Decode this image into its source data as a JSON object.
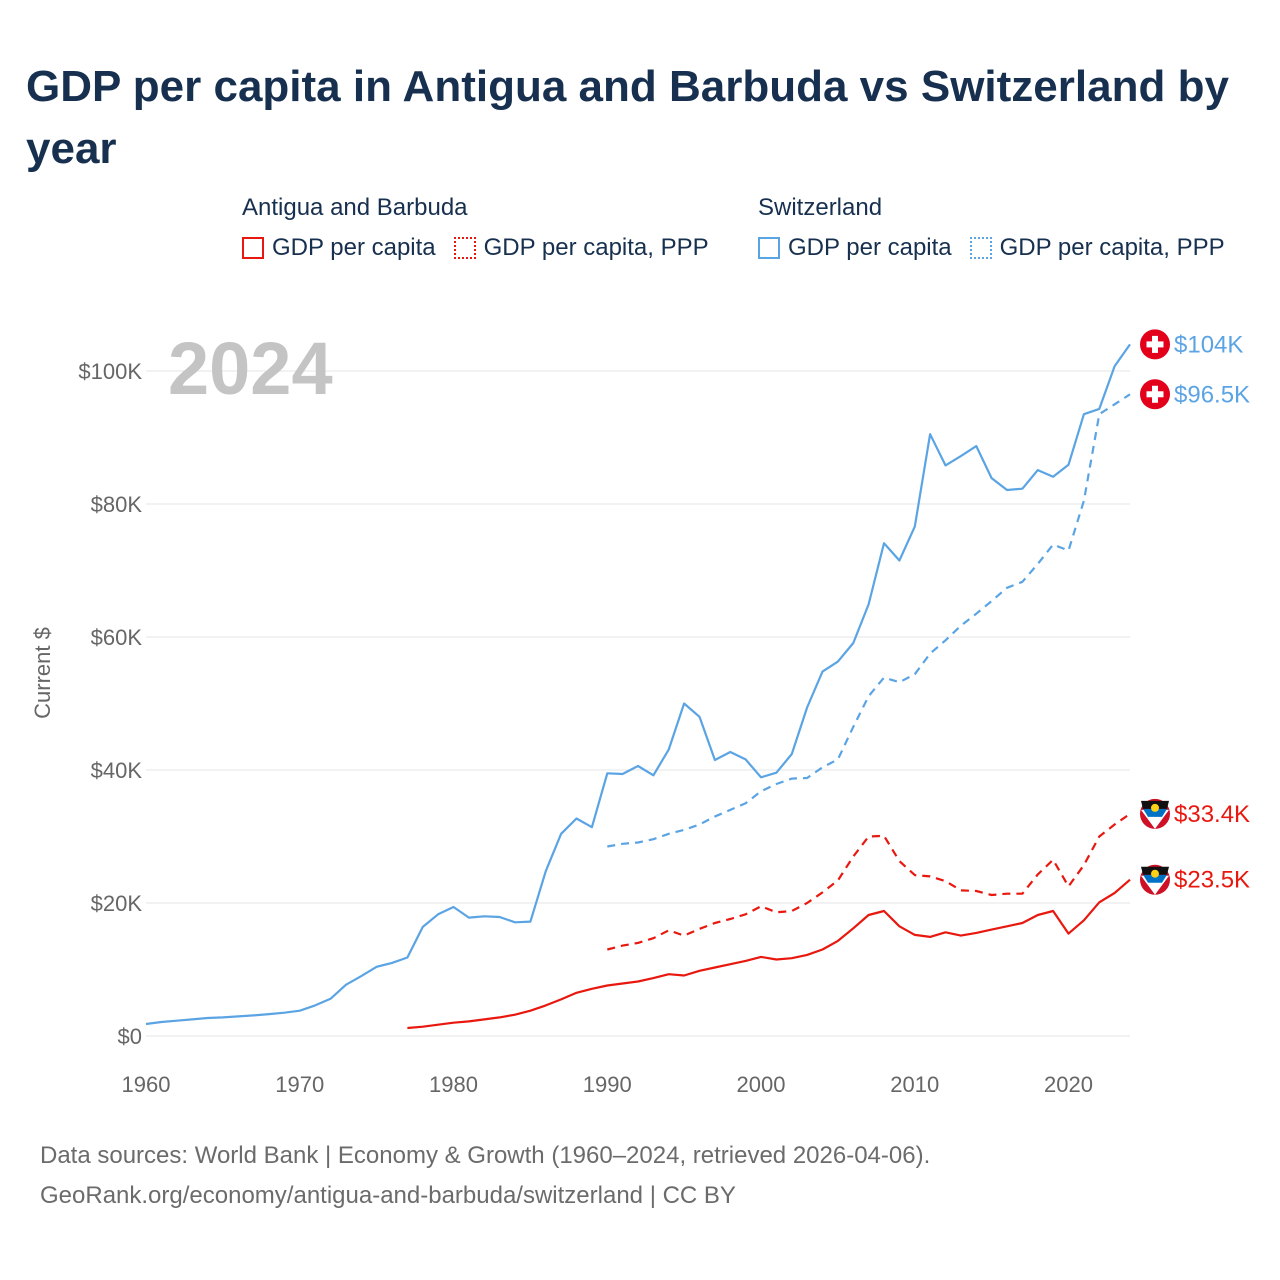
{
  "title": "GDP per capita in Antigua and Barbuda vs Switzerland by year",
  "legend": {
    "groups": [
      {
        "name": "Antigua and Barbuda",
        "items": [
          "GDP per capita",
          "GDP per capita, PPP"
        ]
      },
      {
        "name": "Switzerland",
        "items": [
          "GDP per capita",
          "GDP per capita, PPP"
        ]
      }
    ]
  },
  "year_label": "2024",
  "footer": {
    "line1": "Data sources: World Bank | Economy & Growth (1960–2024, retrieved 2026-04-06).",
    "line2": "GeoRank.org/economy/antigua-and-barbuda/switzerland | CC BY"
  },
  "colors": {
    "antigua": "#e8180f",
    "switzerland": "#5ba4e4",
    "grid": "#e6e6e6",
    "axis_text": "#666666"
  },
  "chart_data": {
    "type": "line",
    "title": "GDP per capita in Antigua and Barbuda vs Switzerland by year",
    "xlabel": "",
    "ylabel": "Current $",
    "xlim": [
      1960,
      2024
    ],
    "ylim": [
      0,
      104000
    ],
    "x_ticks": [
      1960,
      1970,
      1980,
      1990,
      2000,
      2010,
      2020
    ],
    "y_ticks": [
      {
        "value": 0,
        "label": "$0"
      },
      {
        "value": 20000,
        "label": "$20K"
      },
      {
        "value": 40000,
        "label": "$40K"
      },
      {
        "value": 60000,
        "label": "$60K"
      },
      {
        "value": 80000,
        "label": "$80K"
      },
      {
        "value": 100000,
        "label": "$100K"
      }
    ],
    "grid": true,
    "series": [
      {
        "name": "Switzerland GDP per capita",
        "country": "switzerland",
        "dash": false,
        "end_label": "$104K",
        "x": [
          1960,
          1961,
          1962,
          1963,
          1964,
          1965,
          1966,
          1967,
          1968,
          1969,
          1970,
          1971,
          1972,
          1973,
          1974,
          1975,
          1976,
          1977,
          1978,
          1979,
          1980,
          1981,
          1982,
          1983,
          1984,
          1985,
          1986,
          1987,
          1988,
          1989,
          1990,
          1991,
          1992,
          1993,
          1994,
          1995,
          1996,
          1997,
          1998,
          1999,
          2000,
          2001,
          2002,
          2003,
          2004,
          2005,
          2006,
          2007,
          2008,
          2009,
          2010,
          2011,
          2012,
          2013,
          2014,
          2015,
          2016,
          2017,
          2018,
          2019,
          2020,
          2021,
          2022,
          2023,
          2024
        ],
        "values": [
          1800,
          2100,
          2300,
          2500,
          2700,
          2800,
          2950,
          3100,
          3300,
          3500,
          3800,
          4600,
          5600,
          7700,
          9000,
          10400,
          11000,
          11800,
          16400,
          18300,
          19400,
          17800,
          18000,
          17900,
          17100,
          17200,
          24800,
          30400,
          32700,
          31400,
          39500,
          39400,
          40600,
          39200,
          43100,
          50000,
          48000,
          41500,
          42700,
          41600,
          38900,
          39600,
          42400,
          49400,
          54800,
          56300,
          59100,
          64900,
          74100,
          71500,
          76600,
          90500,
          85800,
          87200,
          88700,
          83900,
          82100,
          82300,
          85100,
          84100,
          85900,
          93500,
          94300,
          100700,
          104000
        ]
      },
      {
        "name": "Switzerland GDP per capita, PPP",
        "country": "switzerland",
        "dash": true,
        "end_label": "$96.5K",
        "x": [
          1990,
          1991,
          1992,
          1993,
          1994,
          1995,
          1996,
          1997,
          1998,
          1999,
          2000,
          2001,
          2002,
          2003,
          2004,
          2005,
          2006,
          2007,
          2008,
          2009,
          2010,
          2011,
          2012,
          2013,
          2014,
          2015,
          2016,
          2017,
          2018,
          2019,
          2020,
          2021,
          2022,
          2023,
          2024
        ],
        "values": [
          28500,
          28900,
          29100,
          29600,
          30400,
          31000,
          31800,
          33000,
          34000,
          35000,
          36800,
          37900,
          38700,
          38800,
          40400,
          41600,
          46500,
          51100,
          53900,
          53200,
          54400,
          57500,
          59500,
          61700,
          63500,
          65400,
          67400,
          68300,
          71000,
          73900,
          73000,
          80500,
          93500,
          95000,
          96500
        ]
      },
      {
        "name": "Antigua and Barbuda GDP per capita",
        "country": "antigua",
        "dash": false,
        "end_label": "$23.5K",
        "x": [
          1977,
          1978,
          1979,
          1980,
          1981,
          1982,
          1983,
          1984,
          1985,
          1986,
          1987,
          1988,
          1989,
          1990,
          1991,
          1992,
          1993,
          1994,
          1995,
          1996,
          1997,
          1998,
          1999,
          2000,
          2001,
          2002,
          2003,
          2004,
          2005,
          2006,
          2007,
          2008,
          2009,
          2010,
          2011,
          2012,
          2013,
          2014,
          2015,
          2016,
          2017,
          2018,
          2019,
          2020,
          2021,
          2022,
          2023,
          2024
        ],
        "values": [
          1200,
          1400,
          1700,
          2000,
          2200,
          2500,
          2800,
          3200,
          3800,
          4600,
          5500,
          6500,
          7100,
          7600,
          7900,
          8200,
          8700,
          9300,
          9100,
          9800,
          10300,
          10800,
          11300,
          11900,
          11500,
          11700,
          12200,
          13000,
          14300,
          16200,
          18200,
          18800,
          16500,
          15200,
          14900,
          15600,
          15100,
          15500,
          16000,
          16500,
          17000,
          18200,
          18800,
          15400,
          17400,
          20100,
          21500,
          23500
        ]
      },
      {
        "name": "Antigua and Barbuda GDP per capita, PPP",
        "country": "antigua",
        "dash": true,
        "end_label": "$33.4K",
        "x": [
          1990,
          1991,
          1992,
          1993,
          1994,
          1995,
          1996,
          1997,
          1998,
          1999,
          2000,
          2001,
          2002,
          2003,
          2004,
          2005,
          2006,
          2007,
          2008,
          2009,
          2010,
          2011,
          2012,
          2013,
          2014,
          2015,
          2016,
          2017,
          2018,
          2019,
          2020,
          2021,
          2022,
          2023,
          2024
        ],
        "values": [
          13000,
          13600,
          14000,
          14700,
          15900,
          15100,
          16100,
          17000,
          17600,
          18300,
          19500,
          18600,
          18800,
          20000,
          21600,
          23400,
          27000,
          30000,
          30100,
          26300,
          24200,
          24000,
          23300,
          21900,
          21800,
          21200,
          21400,
          21400,
          24300,
          26500,
          22500,
          25700,
          30000,
          31800,
          33400
        ]
      }
    ]
  }
}
